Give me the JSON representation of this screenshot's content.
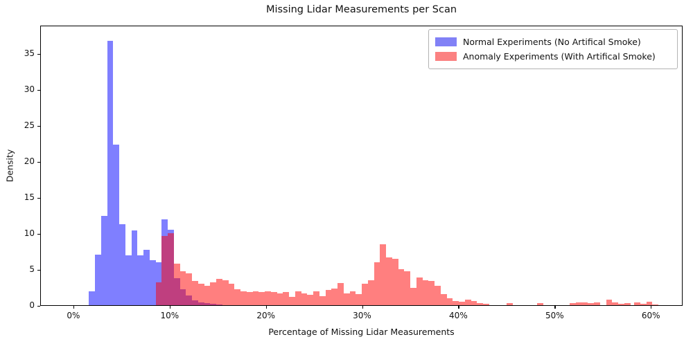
{
  "title": "Missing Lidar Measurements per Scan",
  "axes": {
    "xlabel": "Percentage of Missing Lidar Measurements",
    "ylabel": "Density",
    "x_ticks": [
      {
        "v": 0,
        "label": "0%"
      },
      {
        "v": 10,
        "label": "10%"
      },
      {
        "v": 20,
        "label": "20%"
      },
      {
        "v": 30,
        "label": "30%"
      },
      {
        "v": 40,
        "label": "40%"
      },
      {
        "v": 50,
        "label": "50%"
      },
      {
        "v": 60,
        "label": "60%"
      }
    ],
    "y_ticks": [
      {
        "v": 0,
        "label": "0"
      },
      {
        "v": 5,
        "label": "5"
      },
      {
        "v": 10,
        "label": "10"
      },
      {
        "v": 15,
        "label": "15"
      },
      {
        "v": 20,
        "label": "20"
      },
      {
        "v": 25,
        "label": "25"
      },
      {
        "v": 30,
        "label": "30"
      },
      {
        "v": 35,
        "label": "35"
      }
    ]
  },
  "legend": {
    "items": [
      {
        "id": "normal",
        "label": "Normal Experiments (No Artifical Smoke)",
        "swatch_color": "#8181f6"
      },
      {
        "id": "anomaly",
        "label": "Anomaly Experiments (With Artifical Smoke)",
        "swatch_color": "#fb8181"
      }
    ]
  },
  "chart_data": {
    "type": "bar",
    "subtype": "overlapping-histograms",
    "title": "Missing Lidar Measurements per Scan",
    "xlabel": "Percentage of Missing Lidar Measurements",
    "ylabel": "Density",
    "xlim": [
      -3.45,
      63.3
    ],
    "ylim": [
      0,
      38.9
    ],
    "grid": false,
    "legend_position": "upper right",
    "x_unit": "percent",
    "series": [
      {
        "id": "normal",
        "name": "Normal Experiments (No Artifical Smoke)",
        "color": "rgba(0,0,255,0.5)",
        "bins": [
          [
            1.55,
            2.18,
            1.9
          ],
          [
            2.18,
            2.81,
            7.0
          ],
          [
            2.81,
            3.44,
            12.4
          ],
          [
            3.44,
            4.07,
            36.7
          ],
          [
            4.07,
            4.7,
            22.3
          ],
          [
            4.7,
            5.33,
            11.2
          ],
          [
            5.33,
            5.96,
            6.9
          ],
          [
            5.96,
            6.59,
            10.4
          ],
          [
            6.59,
            7.22,
            6.9
          ],
          [
            7.22,
            7.85,
            7.7
          ],
          [
            7.85,
            8.48,
            6.2
          ],
          [
            8.48,
            9.11,
            6.0
          ],
          [
            9.11,
            9.74,
            11.9
          ],
          [
            9.74,
            10.37,
            10.5
          ],
          [
            10.37,
            11.0,
            3.7
          ],
          [
            11.0,
            11.63,
            2.2
          ],
          [
            11.63,
            12.26,
            1.3
          ],
          [
            12.26,
            12.89,
            0.65
          ],
          [
            12.89,
            13.52,
            0.35
          ],
          [
            13.52,
            14.15,
            0.25
          ],
          [
            14.15,
            14.78,
            0.18
          ],
          [
            14.78,
            15.41,
            0.1
          ]
        ]
      },
      {
        "id": "anomaly",
        "name": "Anomaly Experiments (With Artifical Smoke)",
        "color": "rgba(255,0,0,0.5)",
        "bins": [
          [
            8.48,
            9.11,
            3.2
          ],
          [
            9.11,
            9.74,
            9.6
          ],
          [
            9.74,
            10.37,
            10.0
          ],
          [
            10.37,
            11.0,
            5.8
          ],
          [
            11.0,
            11.63,
            4.7
          ],
          [
            11.63,
            12.26,
            4.4
          ],
          [
            12.26,
            12.89,
            3.4
          ],
          [
            12.89,
            13.52,
            3.0
          ],
          [
            13.52,
            14.15,
            2.7
          ],
          [
            14.15,
            14.78,
            3.2
          ],
          [
            14.78,
            15.41,
            3.65
          ],
          [
            15.41,
            16.04,
            3.45
          ],
          [
            16.04,
            16.67,
            3.0
          ],
          [
            16.67,
            17.3,
            2.2
          ],
          [
            17.3,
            17.93,
            1.95
          ],
          [
            17.93,
            18.56,
            1.8
          ],
          [
            18.56,
            19.19,
            1.95
          ],
          [
            19.19,
            19.82,
            1.8
          ],
          [
            19.82,
            20.45,
            1.95
          ],
          [
            20.45,
            21.08,
            1.8
          ],
          [
            21.08,
            21.71,
            1.6
          ],
          [
            21.71,
            22.34,
            1.8
          ],
          [
            22.34,
            22.97,
            1.15
          ],
          [
            22.97,
            23.6,
            1.95
          ],
          [
            23.6,
            24.23,
            1.6
          ],
          [
            24.23,
            24.86,
            1.45
          ],
          [
            24.86,
            25.49,
            1.95
          ],
          [
            25.49,
            26.12,
            1.25
          ],
          [
            26.12,
            26.75,
            2.1
          ],
          [
            26.75,
            27.38,
            2.3
          ],
          [
            27.38,
            28.01,
            3.1
          ],
          [
            28.01,
            28.64,
            1.6
          ],
          [
            28.64,
            29.27,
            1.95
          ],
          [
            29.27,
            29.9,
            1.5
          ],
          [
            29.9,
            30.53,
            3.0
          ],
          [
            30.53,
            31.16,
            3.5
          ],
          [
            31.16,
            31.79,
            6.0
          ],
          [
            31.79,
            32.42,
            8.5
          ],
          [
            32.42,
            33.05,
            6.6
          ],
          [
            33.05,
            33.68,
            6.4
          ],
          [
            33.68,
            34.31,
            5.0
          ],
          [
            34.31,
            34.94,
            4.75
          ],
          [
            34.94,
            35.57,
            2.4
          ],
          [
            35.57,
            36.2,
            3.8
          ],
          [
            36.2,
            36.83,
            3.5
          ],
          [
            36.83,
            37.46,
            3.4
          ],
          [
            37.46,
            38.09,
            2.7
          ],
          [
            38.09,
            38.72,
            1.5
          ],
          [
            38.72,
            39.35,
            1.0
          ],
          [
            39.35,
            39.98,
            0.55
          ],
          [
            39.98,
            40.61,
            0.45
          ],
          [
            40.61,
            41.24,
            0.8
          ],
          [
            41.24,
            41.87,
            0.55
          ],
          [
            41.87,
            42.5,
            0.3
          ],
          [
            42.5,
            43.13,
            0.15
          ],
          [
            44.95,
            45.58,
            0.3
          ],
          [
            48.1,
            48.73,
            0.25
          ],
          [
            51.5,
            52.13,
            0.3
          ],
          [
            52.13,
            52.76,
            0.4
          ],
          [
            52.76,
            53.39,
            0.35
          ],
          [
            53.39,
            54.02,
            0.3
          ],
          [
            54.02,
            54.65,
            0.35
          ],
          [
            55.28,
            55.91,
            0.75
          ],
          [
            55.91,
            56.54,
            0.35
          ],
          [
            56.54,
            57.17,
            0.2
          ],
          [
            57.17,
            57.8,
            0.3
          ],
          [
            58.2,
            58.83,
            0.35
          ],
          [
            58.83,
            59.46,
            0.2
          ],
          [
            59.46,
            60.09,
            0.45
          ],
          [
            60.09,
            60.72,
            0.1
          ]
        ]
      }
    ]
  }
}
